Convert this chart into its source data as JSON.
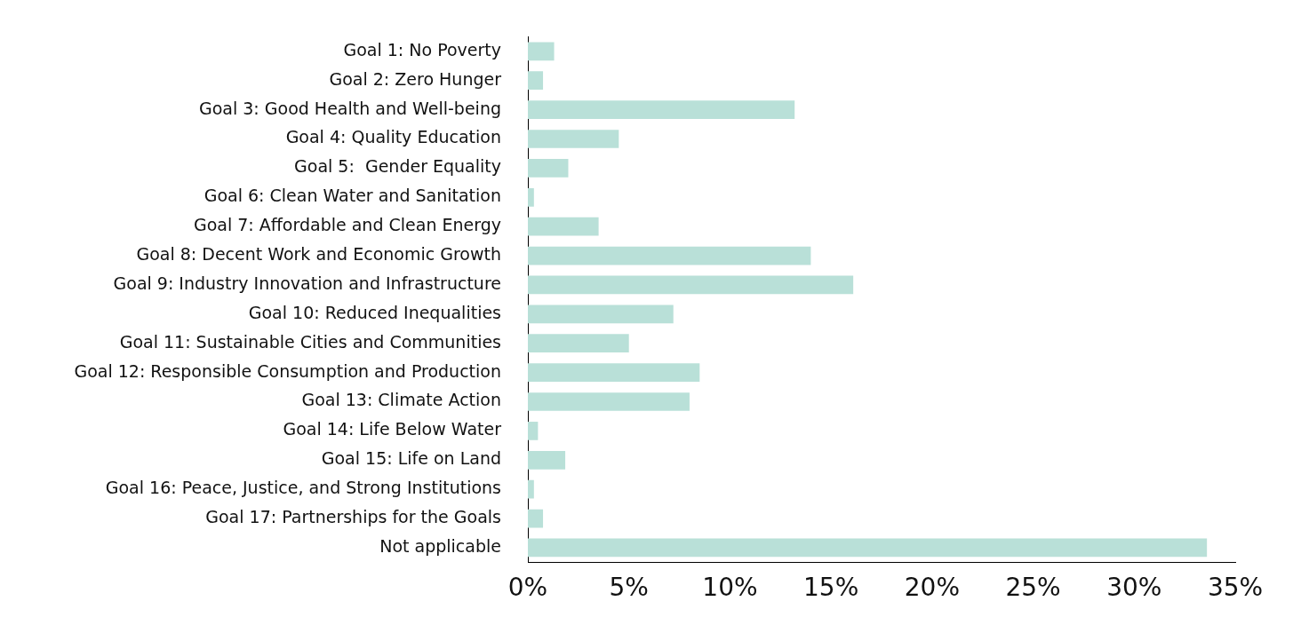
{
  "chart_data": {
    "type": "bar",
    "orientation": "horizontal",
    "categories": [
      "Goal 1: No Poverty",
      "Goal 2: Zero Hunger",
      "Goal 3: Good Health and Well-being",
      "Goal 4: Quality Education",
      "Goal 5:  Gender Equality",
      "Goal 6: Clean Water and Sanitation",
      "Goal 7: Affordable and Clean Energy",
      "Goal 8: Decent Work and Economic Growth",
      "Goal 9: Industry Innovation and Infrastructure",
      "Goal 10: Reduced Inequalities",
      "Goal 11: Sustainable Cities and Communities",
      "Goal 12: Responsible Consumption and Production",
      "Goal 13: Climate Action",
      "Goal 14: Life Below Water",
      "Goal 15: Life on Land",
      "Goal 16: Peace, Justice, and Strong Institutions",
      "Goal 17: Partnerships for the Goals",
      "Not applicable"
    ],
    "values": [
      1.3,
      0.75,
      13.2,
      4.5,
      2.0,
      0.3,
      3.5,
      14.0,
      16.1,
      7.2,
      5.0,
      8.5,
      8.0,
      0.5,
      1.85,
      0.3,
      0.75,
      33.6
    ],
    "color": "#b9e0d8",
    "xlim": [
      0,
      35
    ],
    "xticks": [
      {
        "value": 0,
        "label": "0%"
      },
      {
        "value": 5,
        "label": "5%"
      },
      {
        "value": 10,
        "label": "10%"
      },
      {
        "value": 15,
        "label": "15%"
      },
      {
        "value": 20,
        "label": "20%"
      },
      {
        "value": 25,
        "label": "25%"
      },
      {
        "value": 30,
        "label": "30%"
      },
      {
        "value": 35,
        "label": "35%"
      }
    ],
    "grid": false,
    "legend": false
  }
}
